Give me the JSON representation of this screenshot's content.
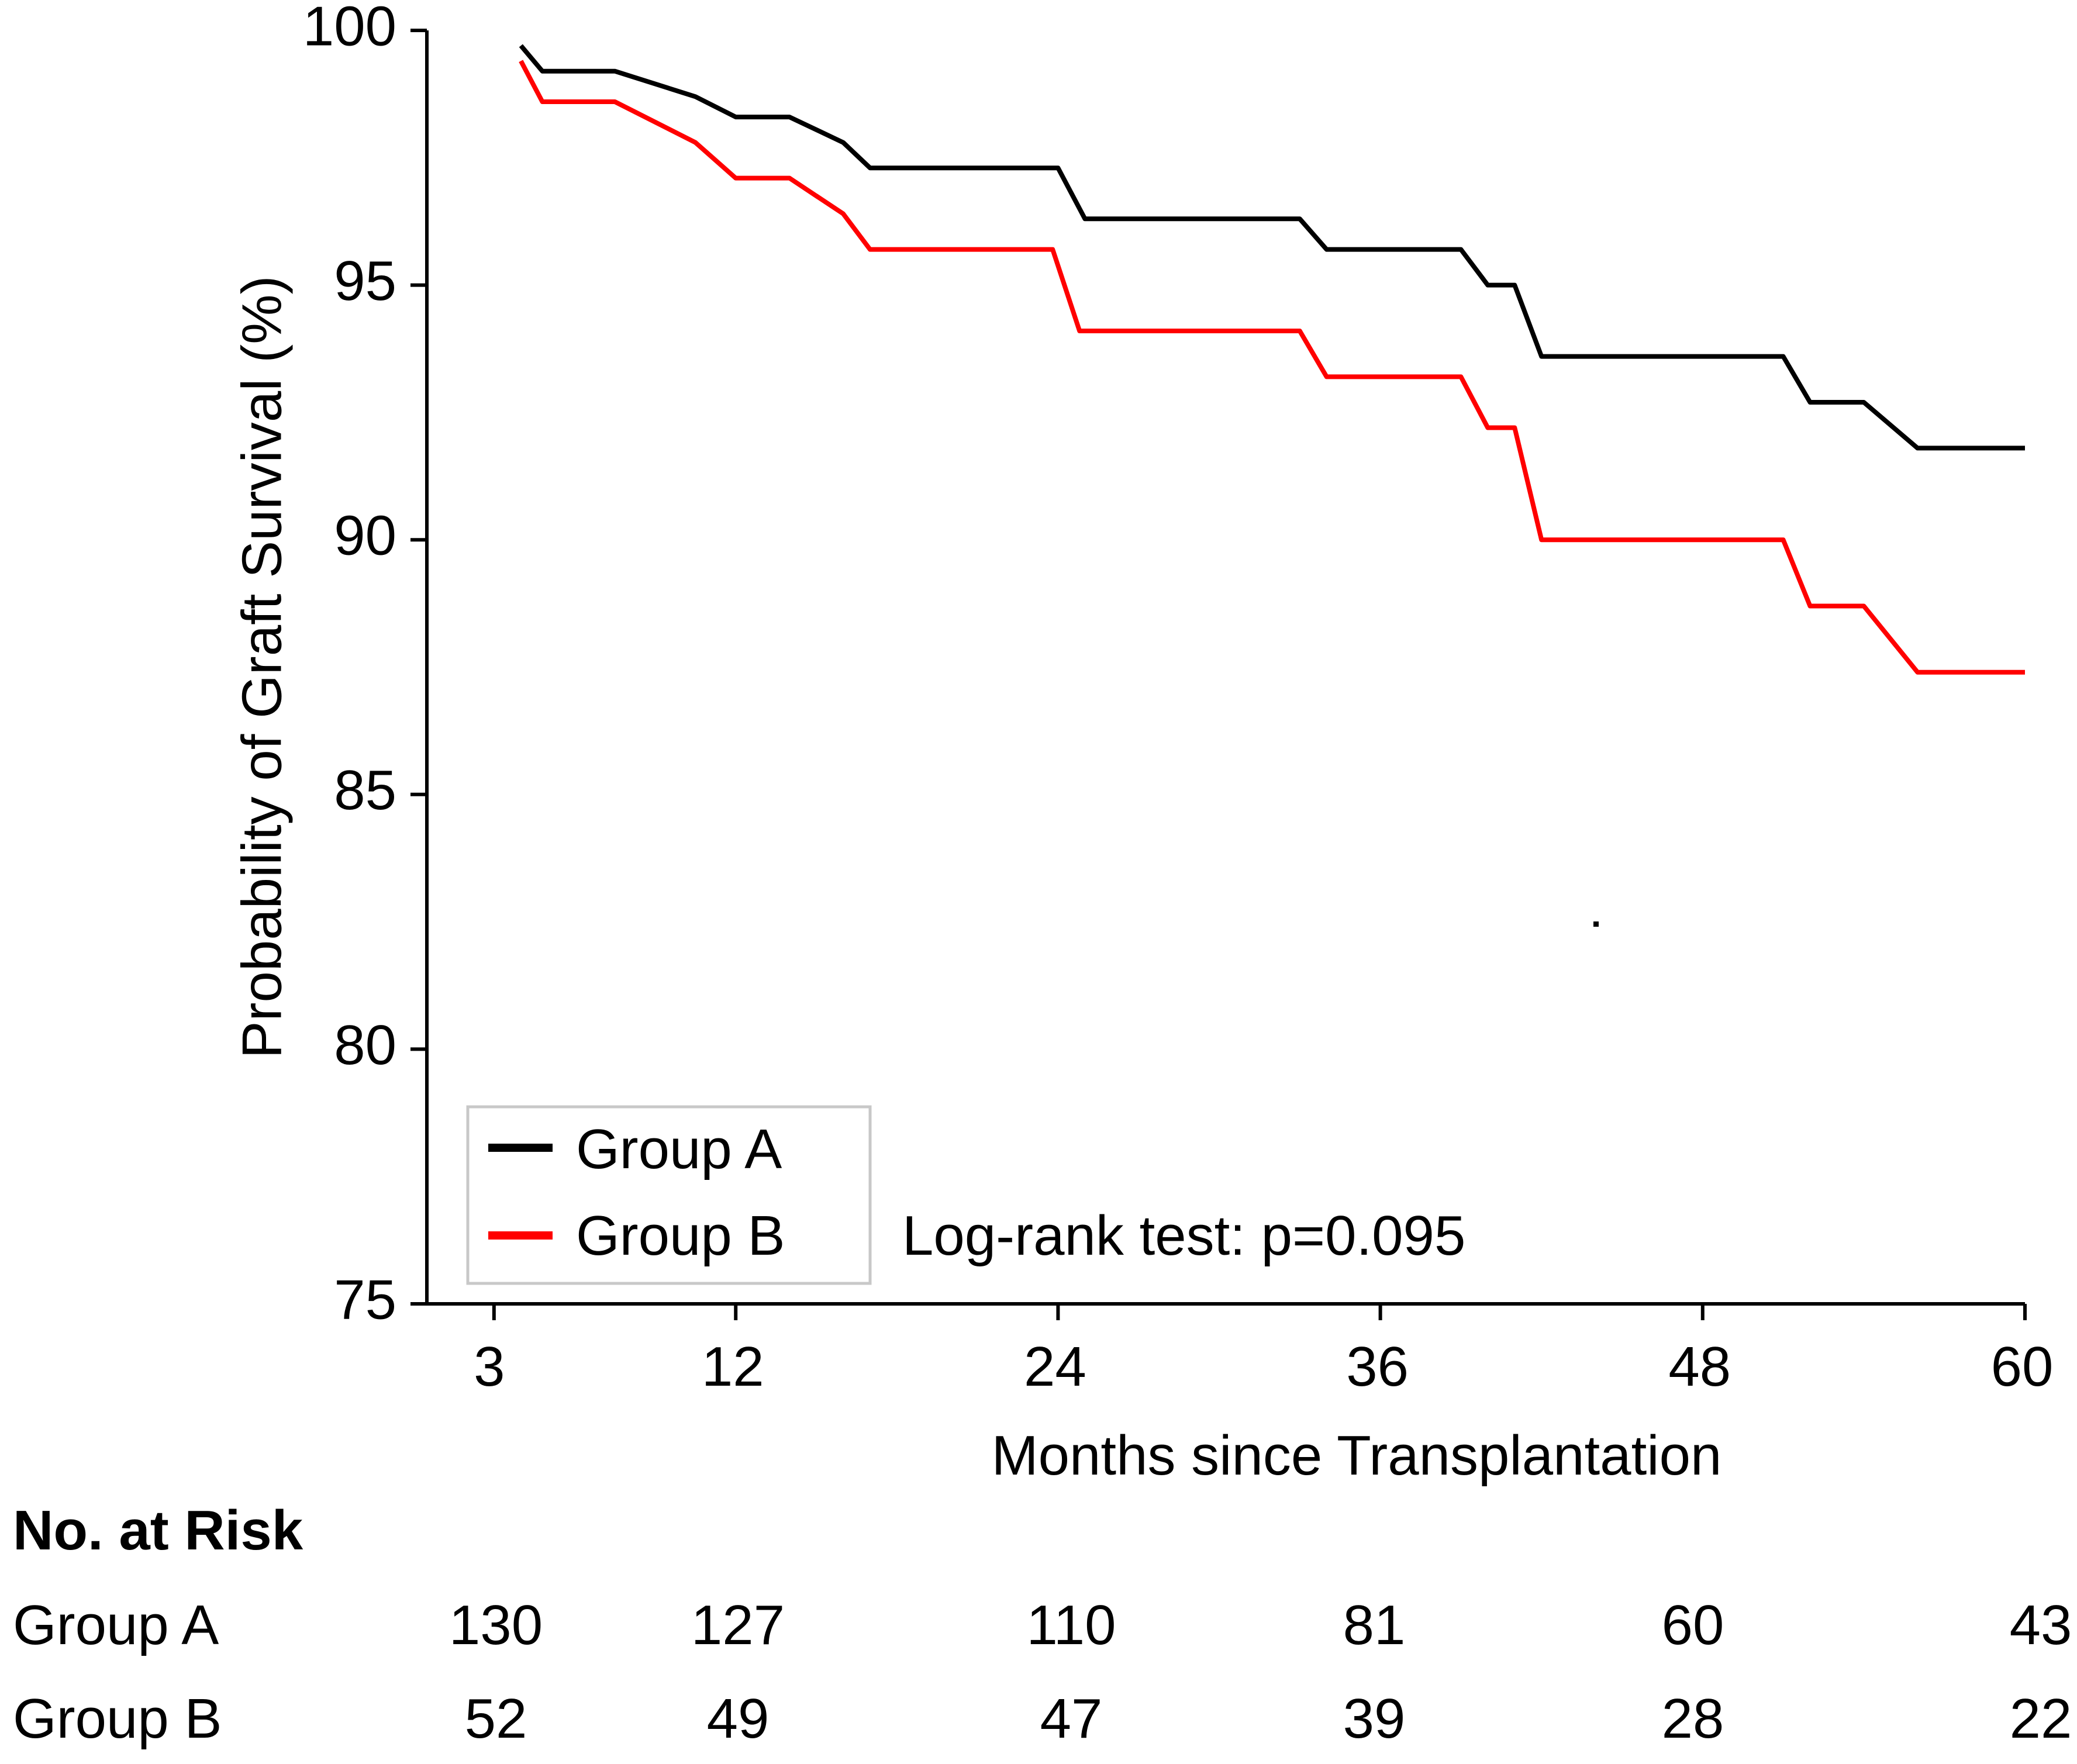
{
  "chart_data": {
    "type": "line",
    "step": true,
    "title": "",
    "xlabel": "Months since Transplantation",
    "ylabel": "Probability of Graft Survival (%)",
    "xlim": [
      0.5,
      60
    ],
    "ylim": [
      75,
      100
    ],
    "xticks": [
      3,
      12,
      24,
      36,
      48,
      60
    ],
    "yticks": [
      75,
      80,
      85,
      90,
      95,
      100
    ],
    "grid": false,
    "legend_position": "bottom-left",
    "series": [
      {
        "name": "Group A",
        "color": "#000000",
        "x": [
          4,
          4.8,
          7.5,
          10.5,
          12,
          14,
          16,
          17,
          24,
          25,
          33,
          34,
          39,
          40,
          41,
          42,
          51,
          52,
          54,
          56,
          60
        ],
        "y": [
          99.7,
          99.2,
          99.2,
          98.7,
          98.3,
          98.3,
          97.8,
          97.3,
          97.3,
          96.3,
          96.3,
          95.7,
          95.7,
          95.0,
          95.0,
          93.6,
          93.6,
          92.7,
          92.7,
          91.8,
          91.8
        ]
      },
      {
        "name": "Group B",
        "color": "#ff0000",
        "x": [
          4,
          4.8,
          7.5,
          10.5,
          12,
          14,
          16,
          17,
          23.8,
          24.8,
          33,
          34,
          39,
          40,
          41,
          42,
          51,
          52,
          54,
          56,
          60
        ],
        "y": [
          99.4,
          98.6,
          98.6,
          97.8,
          97.1,
          97.1,
          96.4,
          95.7,
          95.7,
          94.1,
          94.1,
          93.2,
          93.2,
          92.2,
          92.2,
          90.0,
          90.0,
          88.7,
          88.7,
          87.4,
          87.4
        ]
      }
    ],
    "annotation": "Log-rank test: p=0.095",
    "risk_table": {
      "title": "No. at Risk",
      "times": [
        3,
        12,
        24,
        36,
        48,
        60
      ],
      "rows": [
        {
          "label": "Group A",
          "values": [
            "130",
            "127",
            "110",
            "81",
            "60",
            "43"
          ]
        },
        {
          "label": "Group B",
          "values": [
            "52",
            "49",
            "47",
            "39",
            "28",
            "22"
          ]
        }
      ]
    }
  }
}
